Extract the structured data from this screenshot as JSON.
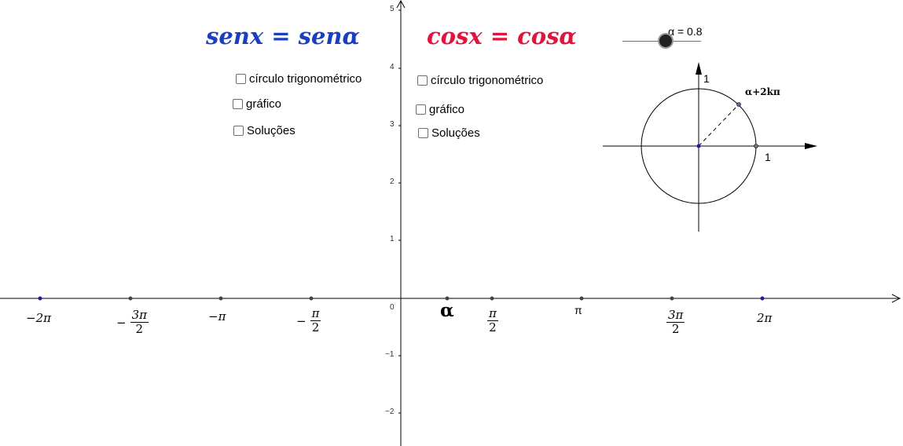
{
  "equations": {
    "sin_eq": "senx = senα",
    "cos_eq": "cosx = cosα",
    "sin_color": "#1c3fbf",
    "cos_color": "#e0143c"
  },
  "sin_panel": {
    "options": [
      "círculo trigonométrico",
      "gráfico",
      "Soluções"
    ]
  },
  "cos_panel": {
    "options": [
      "círculo trigonométrico",
      "gráfico",
      "Soluções"
    ]
  },
  "slider": {
    "label": "α = 0.8",
    "value": 0.8
  },
  "axes": {
    "y_ticks": [
      "5",
      "4",
      "3",
      "2",
      "1",
      "0",
      "−1",
      "−2"
    ],
    "x_labels": {
      "neg_two_pi": "−2π",
      "neg_three_pi_half_num": "3π",
      "neg_three_pi_half_den": "2",
      "neg_pi": "−π",
      "neg_pi_half_num": "π",
      "neg_pi_half_den": "2",
      "alpha": "α",
      "pi_half_num": "π",
      "pi_half_den": "2",
      "pi": "π",
      "three_pi_half_num": "3π",
      "three_pi_half_den": "2",
      "two_pi": "2π",
      "minus_sign": "−"
    }
  },
  "unit_circle": {
    "y_label": "1",
    "x_label": "1",
    "point_label": "α+2kπ"
  }
}
